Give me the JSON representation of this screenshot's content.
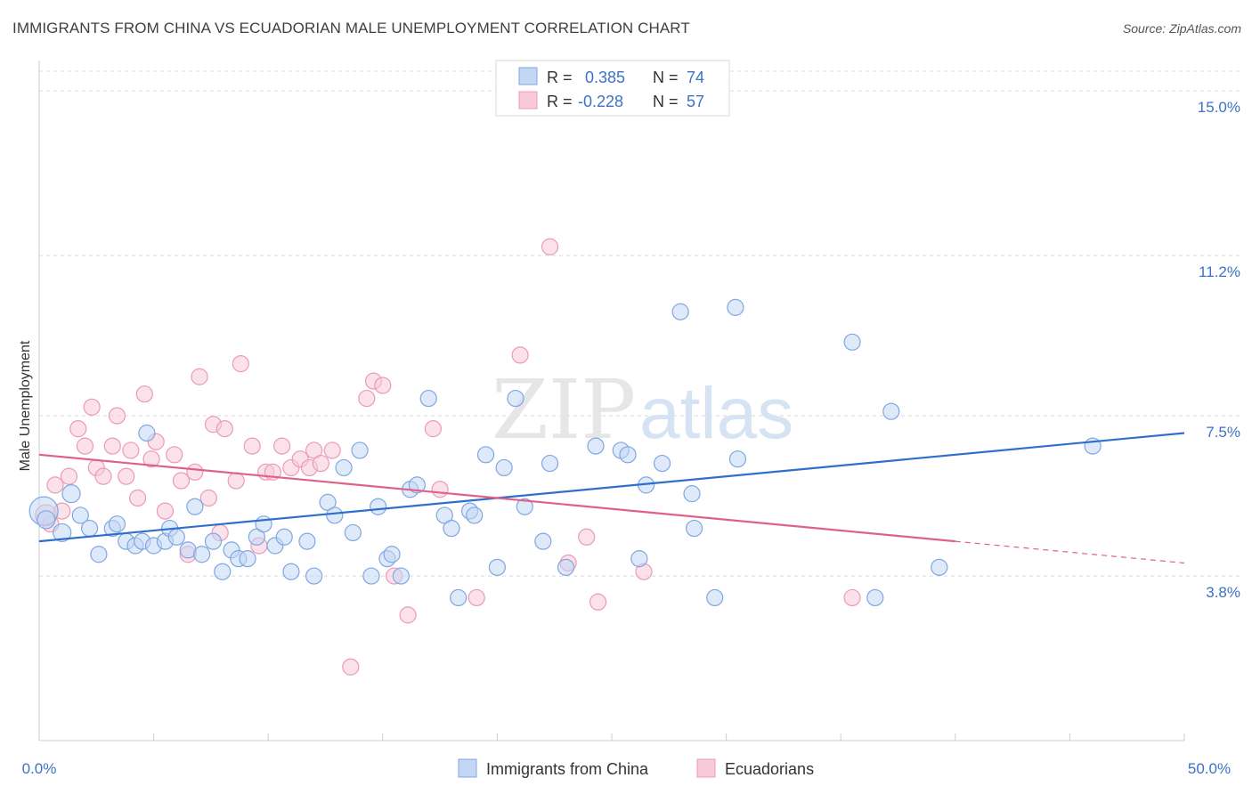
{
  "header": {
    "title": "IMMIGRANTS FROM CHINA VS ECUADORIAN MALE UNEMPLOYMENT CORRELATION CHART",
    "source": "Source: ZipAtlas.com"
  },
  "watermark": {
    "zip": "ZIP",
    "atlas": "atlas"
  },
  "colors": {
    "blue_fill": "#c3d7f5",
    "blue_stroke": "#7fa7e0",
    "blue_line": "#2f6fcc",
    "pink_fill": "#f8cad8",
    "pink_stroke": "#ec9ab4",
    "pink_line": "#e0608a",
    "grid": "#d9d9d9",
    "accent_text": "#3d72c4"
  },
  "legend": {
    "rows": [
      {
        "r_label": "R =",
        "r_value": "0.385",
        "n_label": "N =",
        "n_value": "74"
      },
      {
        "r_label": "R =",
        "r_value": "-0.228",
        "n_label": "N =",
        "n_value": "57"
      }
    ]
  },
  "bottom_legend": [
    "Immigrants from China",
    "Ecuadorians"
  ],
  "chart_data": {
    "type": "scatter",
    "title": "IMMIGRANTS FROM CHINA VS ECUADORIAN MALE UNEMPLOYMENT CORRELATION CHART",
    "xlabel": "",
    "ylabel": "Male Unemployment",
    "xlim": [
      0,
      50
    ],
    "ylim": [
      0,
      15.7
    ],
    "x_tick_labels": [
      "0.0%",
      "50.0%"
    ],
    "y_ticks": [
      3.8,
      7.5,
      11.2,
      15.0
    ],
    "y_tick_labels": [
      "3.8%",
      "7.5%",
      "11.2%",
      "15.0%"
    ],
    "grid": "horizontal dashed",
    "series": [
      {
        "name": "Immigrants from China",
        "color": "blue",
        "r": 0.385,
        "n": 74,
        "trend": {
          "x": [
            0,
            50
          ],
          "y": [
            4.6,
            7.1
          ]
        },
        "points": [
          [
            0.2,
            5.3,
            16
          ],
          [
            0.3,
            5.1,
            10
          ],
          [
            1.0,
            4.8,
            10
          ],
          [
            1.4,
            5.7,
            10
          ],
          [
            1.8,
            5.2,
            9
          ],
          [
            2.2,
            4.9,
            9
          ],
          [
            2.6,
            4.3,
            9
          ],
          [
            3.2,
            4.9,
            9
          ],
          [
            3.4,
            5.0,
            9
          ],
          [
            3.8,
            4.6,
            9
          ],
          [
            4.2,
            4.5,
            9
          ],
          [
            4.5,
            4.6,
            9
          ],
          [
            4.7,
            7.1,
            9
          ],
          [
            5.0,
            4.5,
            9
          ],
          [
            5.5,
            4.6,
            9
          ],
          [
            5.7,
            4.9,
            9
          ],
          [
            6.0,
            4.7,
            9
          ],
          [
            6.5,
            4.4,
            9
          ],
          [
            6.8,
            5.4,
            9
          ],
          [
            7.1,
            4.3,
            9
          ],
          [
            7.6,
            4.6,
            9
          ],
          [
            8.0,
            3.9,
            9
          ],
          [
            8.4,
            4.4,
            9
          ],
          [
            8.7,
            4.2,
            9
          ],
          [
            9.1,
            4.2,
            9
          ],
          [
            9.5,
            4.7,
            9
          ],
          [
            9.8,
            5.0,
            9
          ],
          [
            10.3,
            4.5,
            9
          ],
          [
            10.7,
            4.7,
            9
          ],
          [
            11.0,
            3.9,
            9
          ],
          [
            11.7,
            4.6,
            9
          ],
          [
            12.0,
            3.8,
            9
          ],
          [
            12.6,
            5.5,
            9
          ],
          [
            12.9,
            5.2,
            9
          ],
          [
            13.3,
            6.3,
            9
          ],
          [
            13.7,
            4.8,
            9
          ],
          [
            14.0,
            6.7,
            9
          ],
          [
            14.5,
            3.8,
            9
          ],
          [
            14.8,
            5.4,
            9
          ],
          [
            15.2,
            4.2,
            9
          ],
          [
            15.4,
            4.3,
            9
          ],
          [
            15.8,
            3.8,
            9
          ],
          [
            16.2,
            5.8,
            9
          ],
          [
            16.5,
            5.9,
            9
          ],
          [
            17.0,
            7.9,
            9
          ],
          [
            17.7,
            5.2,
            9
          ],
          [
            18.0,
            4.9,
            9
          ],
          [
            18.3,
            3.3,
            9
          ],
          [
            18.8,
            5.3,
            9
          ],
          [
            19.0,
            5.2,
            9
          ],
          [
            19.5,
            6.6,
            9
          ],
          [
            20.0,
            4.0,
            9
          ],
          [
            20.3,
            6.3,
            9
          ],
          [
            20.8,
            7.9,
            9
          ],
          [
            21.2,
            5.4,
            9
          ],
          [
            22.0,
            4.6,
            9
          ],
          [
            22.3,
            6.4,
            9
          ],
          [
            23.0,
            4.0,
            9
          ],
          [
            24.3,
            6.8,
            9
          ],
          [
            25.4,
            6.7,
            9
          ],
          [
            25.7,
            6.6,
            9
          ],
          [
            26.2,
            4.2,
            9
          ],
          [
            26.5,
            5.9,
            9
          ],
          [
            27.2,
            6.4,
            9
          ],
          [
            28.0,
            9.9,
            9
          ],
          [
            28.5,
            5.7,
            9
          ],
          [
            28.6,
            4.9,
            9
          ],
          [
            29.5,
            3.3,
            9
          ],
          [
            30.4,
            10.0,
            9
          ],
          [
            30.5,
            6.5,
            9
          ],
          [
            35.5,
            9.2,
            9
          ],
          [
            36.5,
            3.3,
            9
          ],
          [
            37.2,
            7.6,
            9
          ],
          [
            39.3,
            4.0,
            9
          ],
          [
            46.0,
            6.8,
            9
          ]
        ]
      },
      {
        "name": "Ecuadorians",
        "color": "pink",
        "r": -0.228,
        "n": 57,
        "trend": {
          "x": [
            0,
            40
          ],
          "y": [
            6.6,
            4.6
          ]
        },
        "trend_dashed": {
          "x": [
            40,
            50
          ],
          "y": [
            4.6,
            4.1
          ]
        },
        "points": [
          [
            0.3,
            5.2,
            12
          ],
          [
            0.5,
            5.0,
            9
          ],
          [
            0.7,
            5.9,
            9
          ],
          [
            1.0,
            5.3,
            9
          ],
          [
            1.3,
            6.1,
            9
          ],
          [
            1.7,
            7.2,
            9
          ],
          [
            2.0,
            6.8,
            9
          ],
          [
            2.3,
            7.7,
            9
          ],
          [
            2.5,
            6.3,
            9
          ],
          [
            2.8,
            6.1,
            9
          ],
          [
            3.2,
            6.8,
            9
          ],
          [
            3.4,
            7.5,
            9
          ],
          [
            3.8,
            6.1,
            9
          ],
          [
            4.0,
            6.7,
            9
          ],
          [
            4.3,
            5.6,
            9
          ],
          [
            4.6,
            8.0,
            9
          ],
          [
            4.9,
            6.5,
            9
          ],
          [
            5.1,
            6.9,
            9
          ],
          [
            5.5,
            5.3,
            9
          ],
          [
            5.9,
            6.6,
            9
          ],
          [
            6.2,
            6.0,
            9
          ],
          [
            6.5,
            4.3,
            9
          ],
          [
            6.8,
            6.2,
            9
          ],
          [
            7.0,
            8.4,
            9
          ],
          [
            7.4,
            5.6,
            9
          ],
          [
            7.6,
            7.3,
            9
          ],
          [
            7.9,
            4.8,
            9
          ],
          [
            8.1,
            7.2,
            9
          ],
          [
            8.6,
            6.0,
            9
          ],
          [
            8.8,
            8.7,
            9
          ],
          [
            9.3,
            6.8,
            9
          ],
          [
            9.6,
            4.5,
            9
          ],
          [
            9.9,
            6.2,
            9
          ],
          [
            10.2,
            6.2,
            9
          ],
          [
            10.6,
            6.8,
            9
          ],
          [
            11.0,
            6.3,
            9
          ],
          [
            11.4,
            6.5,
            9
          ],
          [
            11.8,
            6.3,
            9
          ],
          [
            12.0,
            6.7,
            9
          ],
          [
            12.3,
            6.4,
            9
          ],
          [
            12.8,
            6.7,
            9
          ],
          [
            13.6,
            1.7,
            9
          ],
          [
            14.3,
            7.9,
            9
          ],
          [
            14.6,
            8.3,
            9
          ],
          [
            15.0,
            8.2,
            9
          ],
          [
            15.5,
            3.8,
            9
          ],
          [
            16.1,
            2.9,
            9
          ],
          [
            17.2,
            7.2,
            9
          ],
          [
            17.5,
            5.8,
            9
          ],
          [
            19.1,
            3.3,
            9
          ],
          [
            21.0,
            8.9,
            9
          ],
          [
            22.3,
            11.4,
            9
          ],
          [
            23.1,
            4.1,
            9
          ],
          [
            23.9,
            4.7,
            9
          ],
          [
            24.4,
            3.2,
            9
          ],
          [
            26.4,
            3.9,
            9
          ],
          [
            35.5,
            3.3,
            9
          ]
        ]
      }
    ]
  }
}
